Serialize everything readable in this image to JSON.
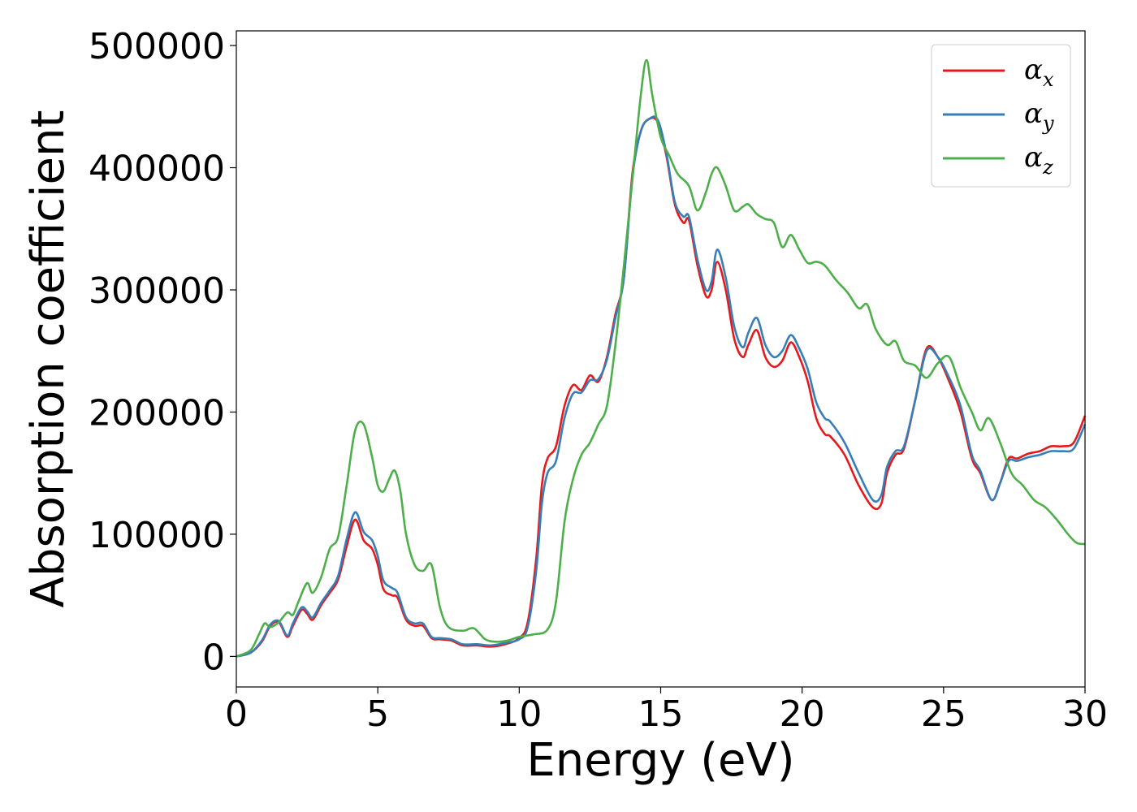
{
  "chart_data": {
    "type": "line",
    "title": "",
    "xlabel": "Energy (eV)",
    "ylabel": "Absorption coefficient",
    "xlim": [
      0,
      30
    ],
    "ylim": [
      -25000,
      512000
    ],
    "xticks": [
      0,
      5,
      10,
      15,
      20,
      25,
      30
    ],
    "yticks": [
      0,
      100000,
      200000,
      300000,
      400000,
      500000
    ],
    "grid": false,
    "legend_position": "top-right",
    "series": [
      {
        "name": "α_x",
        "legend_symbol": "α",
        "legend_subscript": "x",
        "color": "#e41a1c",
        "x": [
          0,
          0.5,
          0.9,
          1.2,
          1.5,
          1.8,
          2.0,
          2.3,
          2.5,
          2.7,
          3.0,
          3.3,
          3.6,
          3.9,
          4.2,
          4.5,
          4.8,
          5.0,
          5.2,
          5.5,
          5.7,
          6.0,
          6.3,
          6.6,
          6.9,
          7.2,
          7.6,
          8.0,
          8.5,
          9.0,
          9.5,
          10.0,
          10.3,
          10.6,
          10.8,
          11.0,
          11.3,
          11.6,
          11.9,
          12.2,
          12.5,
          12.8,
          13.1,
          13.4,
          13.7,
          14.0,
          14.3,
          14.6,
          14.9,
          15.2,
          15.5,
          15.8,
          16.0,
          16.3,
          16.6,
          16.8,
          17.0,
          17.3,
          17.6,
          17.9,
          18.1,
          18.4,
          18.7,
          19.0,
          19.3,
          19.6,
          19.9,
          20.2,
          20.5,
          20.8,
          21.0,
          21.5,
          22.0,
          22.5,
          22.8,
          23.0,
          23.3,
          23.6,
          24.0,
          24.4,
          24.8,
          25.2,
          25.6,
          26.0,
          26.3,
          26.7,
          27.0,
          27.3,
          27.6,
          28.0,
          28.4,
          28.8,
          29.2,
          29.6,
          30.0
        ],
        "y": [
          0,
          3000,
          12000,
          25000,
          28000,
          16000,
          25000,
          38000,
          35000,
          30000,
          42000,
          52000,
          63000,
          90000,
          112000,
          95000,
          88000,
          75000,
          55000,
          50000,
          48000,
          30000,
          25000,
          25000,
          15000,
          14000,
          13000,
          9000,
          9000,
          8000,
          10000,
          15000,
          28000,
          80000,
          140000,
          162000,
          172000,
          205000,
          222000,
          218000,
          230000,
          225000,
          245000,
          280000,
          310000,
          395000,
          430000,
          440000,
          437000,
          410000,
          370000,
          355000,
          357000,
          320000,
          295000,
          300000,
          323000,
          300000,
          260000,
          245000,
          255000,
          267000,
          245000,
          237000,
          242000,
          257000,
          245000,
          225000,
          195000,
          182000,
          180000,
          165000,
          140000,
          122000,
          125000,
          150000,
          165000,
          170000,
          210000,
          252000,
          245000,
          225000,
          200000,
          162000,
          150000,
          128000,
          142000,
          162000,
          162000,
          166000,
          168000,
          172000,
          172000,
          175000,
          197000
        ]
      },
      {
        "name": "α_y",
        "legend_symbol": "α",
        "legend_subscript": "y",
        "color": "#377eb8",
        "x": [
          0,
          0.5,
          0.9,
          1.2,
          1.5,
          1.8,
          2.0,
          2.3,
          2.5,
          2.7,
          3.0,
          3.3,
          3.6,
          3.9,
          4.2,
          4.5,
          4.8,
          5.0,
          5.2,
          5.5,
          5.7,
          6.0,
          6.3,
          6.6,
          6.9,
          7.2,
          7.6,
          8.0,
          8.5,
          9.0,
          9.5,
          10.0,
          10.3,
          10.6,
          10.8,
          11.0,
          11.3,
          11.6,
          11.9,
          12.2,
          12.5,
          12.8,
          13.1,
          13.4,
          13.7,
          14.0,
          14.3,
          14.6,
          14.9,
          15.2,
          15.5,
          15.8,
          16.0,
          16.3,
          16.6,
          16.8,
          17.0,
          17.3,
          17.6,
          17.9,
          18.1,
          18.4,
          18.7,
          19.0,
          19.3,
          19.6,
          19.9,
          20.2,
          20.5,
          20.8,
          21.0,
          21.5,
          22.0,
          22.5,
          22.8,
          23.0,
          23.3,
          23.6,
          24.0,
          24.4,
          24.8,
          25.2,
          25.6,
          26.0,
          26.3,
          26.7,
          27.0,
          27.3,
          27.6,
          28.0,
          28.4,
          28.8,
          29.2,
          29.6,
          30.0
        ],
        "y": [
          0,
          3000,
          13000,
          26000,
          29000,
          17000,
          27000,
          40000,
          37000,
          32000,
          44000,
          54000,
          66000,
          96000,
          118000,
          102000,
          95000,
          82000,
          62000,
          56000,
          52000,
          32000,
          27000,
          27000,
          16000,
          15000,
          14000,
          10000,
          10000,
          9000,
          11000,
          14000,
          24000,
          70000,
          125000,
          150000,
          160000,
          195000,
          215000,
          216000,
          226000,
          227000,
          243000,
          277000,
          310000,
          392000,
          430000,
          440000,
          439000,
          412000,
          372000,
          360000,
          360000,
          325000,
          300000,
          307000,
          333000,
          310000,
          270000,
          253000,
          265000,
          277000,
          255000,
          245000,
          250000,
          263000,
          252000,
          235000,
          208000,
          195000,
          192000,
          175000,
          150000,
          128000,
          132000,
          155000,
          168000,
          172000,
          210000,
          250000,
          245000,
          228000,
          205000,
          165000,
          152000,
          128000,
          142000,
          160000,
          160000,
          163000,
          165000,
          168000,
          168000,
          170000,
          190000
        ]
      },
      {
        "name": "α_z",
        "legend_symbol": "α",
        "legend_subscript": "z",
        "color": "#4daf4a",
        "x": [
          0,
          0.5,
          0.8,
          1.0,
          1.2,
          1.5,
          1.8,
          2.0,
          2.2,
          2.5,
          2.7,
          3.0,
          3.3,
          3.6,
          3.9,
          4.2,
          4.5,
          4.8,
          5.0,
          5.2,
          5.4,
          5.6,
          5.8,
          6.0,
          6.3,
          6.6,
          6.9,
          7.2,
          7.5,
          8.0,
          8.4,
          8.8,
          9.2,
          9.6,
          10.0,
          10.5,
          11.0,
          11.3,
          11.6,
          11.9,
          12.2,
          12.5,
          12.8,
          13.1,
          13.4,
          13.7,
          14.0,
          14.3,
          14.5,
          14.7,
          15.0,
          15.3,
          15.6,
          16.0,
          16.3,
          16.6,
          16.8,
          17.0,
          17.3,
          17.6,
          17.9,
          18.1,
          18.4,
          18.7,
          19.0,
          19.3,
          19.6,
          19.9,
          20.2,
          20.5,
          20.8,
          21.2,
          21.6,
          22.0,
          22.3,
          22.6,
          23.0,
          23.3,
          23.6,
          24.0,
          24.4,
          24.8,
          25.2,
          25.6,
          26.0,
          26.3,
          26.6,
          27.0,
          27.4,
          27.8,
          28.2,
          28.6,
          29.0,
          29.4,
          29.7,
          30.0
        ],
        "y": [
          0,
          5000,
          18000,
          27000,
          24000,
          28000,
          36000,
          34000,
          45000,
          60000,
          52000,
          65000,
          88000,
          98000,
          140000,
          185000,
          190000,
          163000,
          140000,
          135000,
          145000,
          152000,
          135000,
          100000,
          75000,
          70000,
          75000,
          40000,
          24000,
          21000,
          23000,
          14000,
          12000,
          13000,
          16000,
          18000,
          22000,
          45000,
          110000,
          145000,
          165000,
          175000,
          190000,
          205000,
          255000,
          320000,
          390000,
          460000,
          488000,
          460000,
          425000,
          410000,
          395000,
          385000,
          365000,
          380000,
          395000,
          400000,
          385000,
          365000,
          368000,
          370000,
          362000,
          358000,
          355000,
          335000,
          345000,
          333000,
          322000,
          323000,
          320000,
          308000,
          298000,
          285000,
          288000,
          268000,
          255000,
          258000,
          242000,
          238000,
          228000,
          240000,
          245000,
          220000,
          200000,
          185000,
          195000,
          175000,
          150000,
          140000,
          128000,
          122000,
          112000,
          100000,
          93000,
          92000
        ]
      }
    ]
  }
}
